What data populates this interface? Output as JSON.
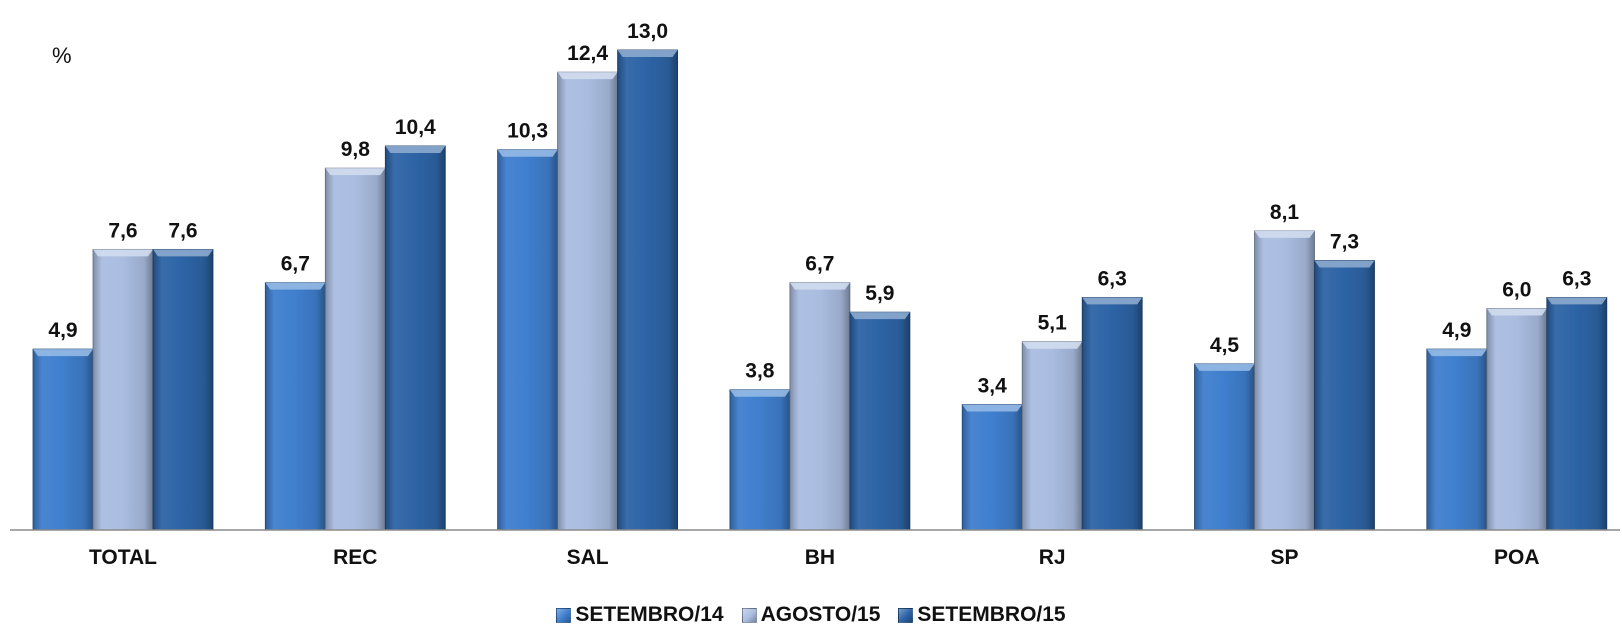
{
  "chart_data": {
    "type": "bar",
    "unit_label": "%",
    "categories": [
      "TOTAL",
      "REC",
      "SAL",
      "BH",
      "RJ",
      "SP",
      "POA"
    ],
    "series": [
      {
        "name": "SETEMBRO/14",
        "color": "#3f7fce",
        "values": [
          4.9,
          6.7,
          10.3,
          3.8,
          3.4,
          4.5,
          4.9
        ],
        "labels": [
          "4,9",
          "6,7",
          "10,3",
          "3,8",
          "3,4",
          "4,5",
          "4,9"
        ]
      },
      {
        "name": "AGOSTO/15",
        "color": "#aabde0",
        "values": [
          7.6,
          9.8,
          12.4,
          6.7,
          5.1,
          8.1,
          6.0
        ],
        "labels": [
          "7,6",
          "9,8",
          "12,4",
          "6,7",
          "5,1",
          "8,1",
          "6,0"
        ]
      },
      {
        "name": "SETEMBRO/15",
        "color": "#2d64a6",
        "values": [
          7.6,
          10.4,
          13.0,
          5.9,
          6.3,
          7.3,
          6.3
        ],
        "labels": [
          "7,6",
          "10,4",
          "13,0",
          "5,9",
          "6,3",
          "7,3",
          "6,3"
        ]
      }
    ],
    "ylim": [
      0,
      13.0
    ],
    "grid": false,
    "legend_position": "bottom"
  }
}
